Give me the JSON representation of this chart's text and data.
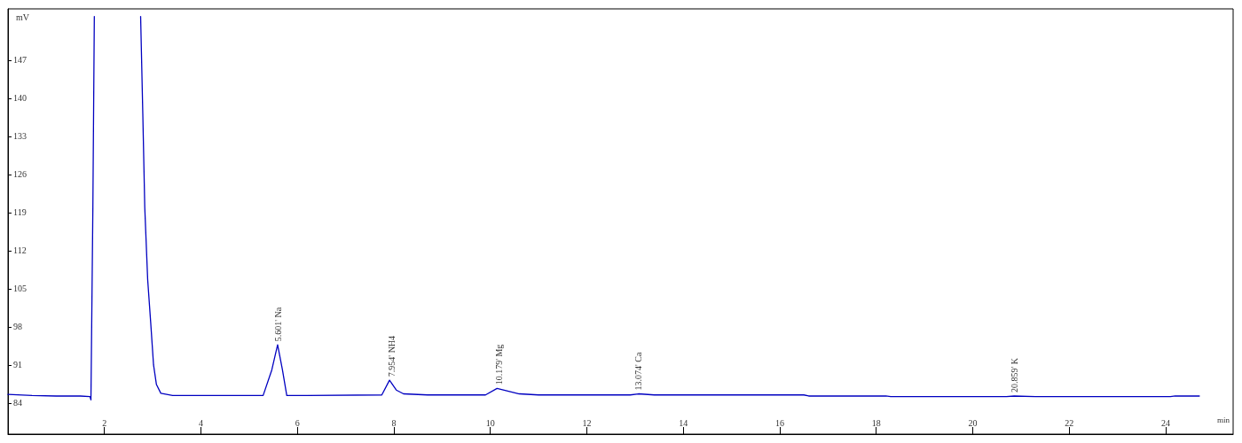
{
  "chart_data": {
    "type": "line",
    "xlabel": "min",
    "ylabel": "mV",
    "x": [
      0,
      0.5,
      1.0,
      1.5,
      1.7,
      1.72,
      1.76,
      1.79,
      null,
      2.75,
      2.795,
      2.836,
      2.896,
      2.958,
      3.018,
      3.078,
      3.169,
      3.413,
      4.5,
      5.29,
      5.47,
      5.59,
      5.69,
      5.78,
      6.2,
      7.75,
      7.91,
      8.05,
      8.2,
      8.7,
      9.9,
      10.14,
      10.6,
      11.0,
      12.9,
      13.07,
      13.4,
      16.5,
      16.6,
      18.2,
      18.3,
      20.7,
      20.86,
      21.3,
      24.1,
      24.2,
      24.7
    ],
    "series": [
      {
        "color": "#0000c0",
        "values": [
          85.6,
          85.4,
          85.3,
          85.3,
          85.2,
          84.6,
          120.0,
          155.0,
          null,
          155.0,
          137.2,
          119.9,
          106.7,
          98.9,
          91.0,
          87.4,
          85.8,
          85.4,
          85.4,
          85.4,
          90.1,
          94.7,
          90.1,
          85.4,
          85.4,
          85.5,
          88.2,
          86.4,
          85.7,
          85.5,
          85.5,
          86.7,
          85.7,
          85.5,
          85.5,
          85.7,
          85.5,
          85.5,
          85.3,
          85.3,
          85.2,
          85.2,
          85.3,
          85.2,
          85.2,
          85.3,
          85.3
        ]
      }
    ],
    "xlim": [
      0,
      25.4
    ],
    "ylim": [
      78.3,
      156.4
    ],
    "xticks": [
      2,
      4,
      6,
      8,
      10,
      12,
      14,
      16,
      18,
      20,
      22,
      24
    ],
    "yticks": [
      84,
      91,
      98,
      105,
      112,
      119,
      126,
      133,
      140,
      147
    ],
    "marker": "none",
    "line_style": "solid",
    "grid": false,
    "annotations": [
      {
        "text": "5.601' Na",
        "x": 5.6,
        "y": 94.7
      },
      {
        "text": "7.954' NH4",
        "x": 7.95,
        "y": 88.2
      },
      {
        "text": "10.179' Mg",
        "x": 10.18,
        "y": 86.7
      },
      {
        "text": "13.074' Ca",
        "x": 13.07,
        "y": 85.7
      },
      {
        "text": "20.859' K",
        "x": 20.86,
        "y": 85.3
      }
    ]
  }
}
